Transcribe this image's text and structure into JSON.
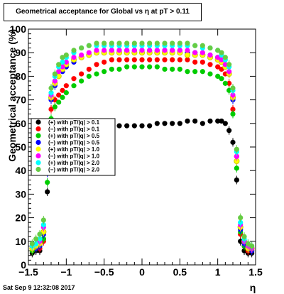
{
  "title": "Geometrical acceptance for Global vs    η at pT > 0.11",
  "footer": "Sat Sep  9 12:32:08 2017",
  "chart_data": {
    "type": "scatter",
    "xlabel": "η",
    "ylabel": "Geometrical acceptance (%)",
    "xlim": [
      -1.5,
      1.5
    ],
    "ylim": [
      0,
      100
    ],
    "x_ticks": [
      "−1.5",
      "−1",
      "−0.5",
      "0",
      "0.5",
      "1",
      "1.5"
    ],
    "x_tick_values": [
      -1.5,
      -1,
      -0.5,
      0,
      0.5,
      1,
      1.5
    ],
    "y_ticks": [
      "0",
      "10",
      "20",
      "30",
      "40",
      "50",
      "60",
      "70",
      "80",
      "90",
      "100"
    ],
    "y_tick_values": [
      0,
      10,
      20,
      30,
      40,
      50,
      60,
      70,
      80,
      90,
      100
    ],
    "x": [
      -1.45,
      -1.4,
      -1.35,
      -1.3,
      -1.25,
      -1.2,
      -1.15,
      -1.1,
      -1.05,
      -1.0,
      -0.9,
      -0.8,
      -0.7,
      -0.6,
      -0.5,
      -0.4,
      -0.3,
      -0.2,
      -0.1,
      0.0,
      0.1,
      0.2,
      0.3,
      0.4,
      0.5,
      0.6,
      0.7,
      0.8,
      0.9,
      1.0,
      1.05,
      1.1,
      1.15,
      1.2,
      1.25,
      1.3,
      1.35,
      1.4,
      1.45
    ],
    "series": [
      {
        "name": "(+) with pT/|q| > 0.1",
        "color": "#000000",
        "values": [
          5,
          6,
          6,
          11,
          31,
          null,
          null,
          null,
          null,
          null,
          null,
          null,
          null,
          60,
          60,
          59,
          59,
          59,
          59,
          59,
          59,
          60,
          60,
          60,
          60,
          61,
          61,
          60,
          61,
          61,
          61,
          60,
          57,
          52,
          36,
          10,
          6,
          5,
          5
        ]
      },
      {
        "name": "(−) with pT/|q| > 0.1",
        "color": "#ff0000",
        "values": [
          6,
          7,
          7,
          10,
          41,
          66,
          70,
          72,
          74,
          76,
          79,
          81,
          83,
          85,
          86,
          87,
          87,
          87,
          87,
          87,
          87,
          87,
          87,
          87,
          87,
          87,
          86,
          86,
          85,
          84,
          83,
          81,
          77,
          66,
          46,
          13,
          8,
          6,
          6
        ]
      },
      {
        "name": "(+) with pT/|q| > 0.5",
        "color": "#00cc00",
        "values": [
          6,
          7,
          8,
          11,
          35,
          62,
          67,
          69,
          71,
          73,
          76,
          78,
          80,
          81,
          82,
          83,
          83,
          84,
          84,
          84,
          84,
          84,
          83,
          83,
          83,
          82,
          82,
          82,
          81,
          80,
          79,
          77,
          74,
          64,
          41,
          14,
          8,
          7,
          6
        ]
      },
      {
        "name": "(−) with pT/|q| > 0.5",
        "color": "#0000ff",
        "values": [
          7,
          7,
          8,
          13,
          39,
          70,
          76,
          80,
          82,
          84,
          86,
          88,
          89,
          90,
          90,
          91,
          91,
          91,
          91,
          91,
          91,
          91,
          91,
          91,
          91,
          90,
          90,
          89,
          89,
          88,
          86,
          84,
          81,
          70,
          44,
          15,
          9,
          7,
          6
        ]
      },
      {
        "name": "(+) with pT/|q| > 1.0",
        "color": "#ffff00",
        "values": [
          7,
          8,
          9,
          14,
          40,
          71,
          77,
          80,
          83,
          85,
          87,
          88,
          89,
          90,
          90,
          90,
          90,
          90,
          90,
          90,
          90,
          90,
          90,
          90,
          90,
          89,
          89,
          89,
          88,
          87,
          86,
          84,
          81,
          71,
          44,
          16,
          10,
          7,
          7
        ]
      },
      {
        "name": "(−) with pT/|q| > 1.0",
        "color": "#ff00ff",
        "values": [
          8,
          9,
          10,
          16,
          42,
          72,
          78,
          82,
          84,
          86,
          88,
          89,
          90,
          91,
          91,
          91,
          91,
          91,
          91,
          91,
          91,
          91,
          91,
          91,
          91,
          91,
          90,
          90,
          89,
          88,
          87,
          85,
          82,
          72,
          46,
          17,
          10,
          8,
          7
        ]
      },
      {
        "name": "(+) with pT/|q| > 2.0",
        "color": "#00ffff",
        "values": [
          8,
          9,
          11,
          17,
          44,
          73,
          80,
          84,
          86,
          88,
          90,
          92,
          93,
          93,
          93,
          93,
          93,
          93,
          93,
          93,
          93,
          93,
          93,
          93,
          93,
          93,
          93,
          92,
          92,
          91,
          89,
          87,
          84,
          74,
          48,
          18,
          11,
          9,
          8
        ]
      },
      {
        "name": "(−) with pT/|q| > 2.0",
        "color": "#66cc44",
        "values": [
          9,
          11,
          13,
          19,
          46,
          75,
          81,
          85,
          88,
          89,
          91,
          92,
          93,
          94,
          94,
          94,
          94,
          94,
          94,
          94,
          94,
          94,
          94,
          94,
          94,
          94,
          93,
          93,
          92,
          91,
          90,
          88,
          85,
          75,
          49,
          20,
          12,
          9,
          8
        ]
      }
    ]
  }
}
